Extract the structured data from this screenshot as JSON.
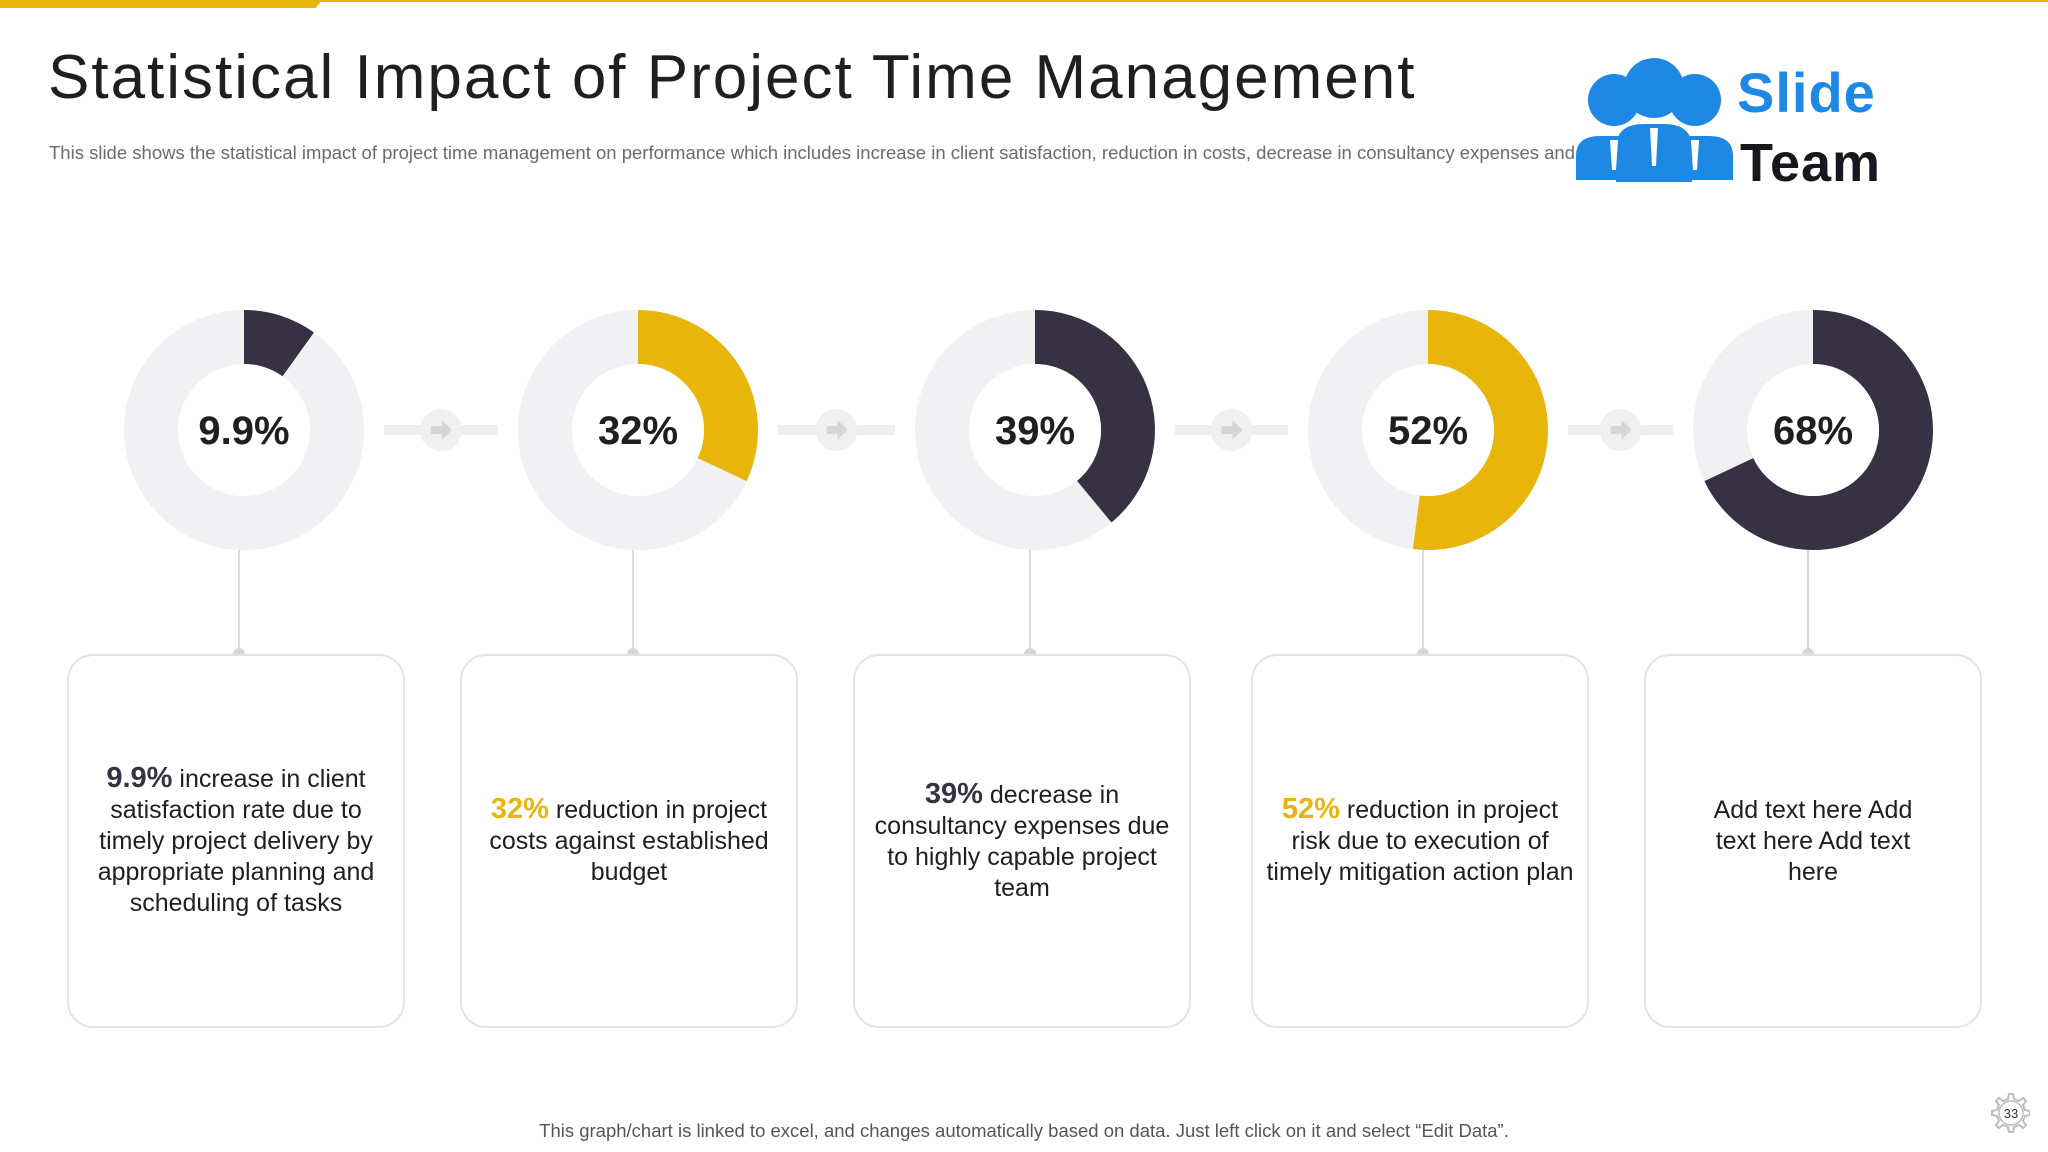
{
  "slide": {
    "title": "Statistical Impact of Project Time Management",
    "subtitle": "This slide shows the statistical impact of project time management on performance which includes increase in client satisfaction, reduction in costs, decrease in consultancy expenses and reduction in project risk etc.",
    "footer": "This graph/chart is linked to excel,  and changes automatically based on data. Just left click on it and select “Edit Data”.",
    "page_number": "33",
    "logo": {
      "line1": "Slide",
      "line2": "Team",
      "icon": "people-group-icon"
    }
  },
  "colors": {
    "accent_yellow": "#e8b60a",
    "dark": "#373144",
    "track": "#f1f0f2",
    "logo_blue": "#1e88e5"
  },
  "chart_data": {
    "type": "pie",
    "items": [
      {
        "label": "9.9%",
        "value": 9.9,
        "color": "#373144"
      },
      {
        "label": "32%",
        "value": 32,
        "color": "#e8b60a"
      },
      {
        "label": "39%",
        "value": 39,
        "color": "#373144"
      },
      {
        "label": "52%",
        "value": 52,
        "color": "#e8b60a"
      },
      {
        "label": "68%",
        "value": 68,
        "color": "#373144"
      }
    ]
  },
  "cards": [
    {
      "value": "9.9%",
      "value_color": "#373144",
      "text": " increase in client satisfaction rate due to timely project delivery by appropriate planning and scheduling of tasks"
    },
    {
      "value": "32%",
      "value_color": "#e8b60a",
      "text": " reduction in project costs against established budget"
    },
    {
      "value": "39%",
      "value_color": "#373144",
      "text": " decrease in consultancy  expenses due to highly capable project team"
    },
    {
      "value": "52%",
      "value_color": "#e8b60a",
      "text": " reduction in project risk due to execution of timely mitigation action plan"
    },
    {
      "value": "",
      "value_color": "#373144",
      "text": "Add text here Add text here Add text here"
    }
  ]
}
